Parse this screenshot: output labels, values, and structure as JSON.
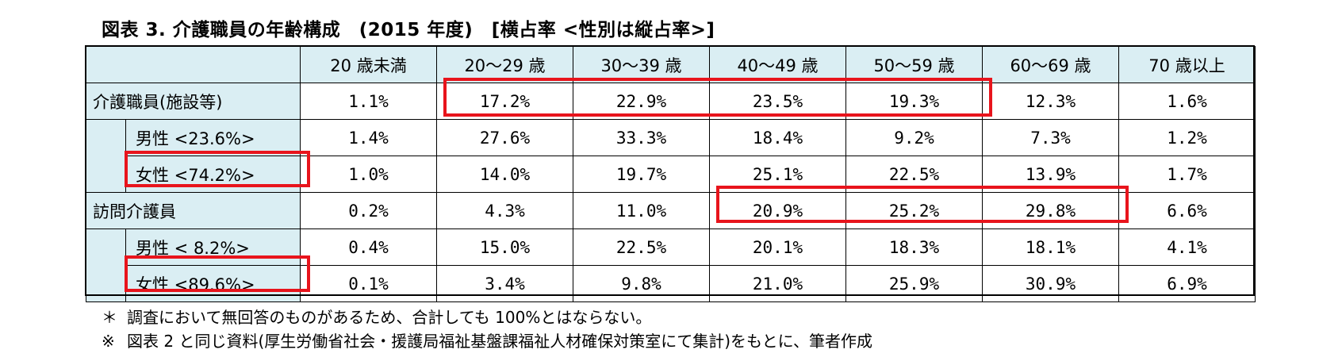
{
  "title": "図表 3.  介護職員の年齢構成　(2015 年度)　[横占率 <性別は縦占率>]",
  "columns": [
    "20 歳未満",
    "20〜29 歳",
    "30〜39 歳",
    "40〜49 歳",
    "50〜59 歳",
    "60〜69 歳",
    "70 歳以上"
  ],
  "rows": [
    {
      "label": "介護職員(施設等)",
      "values": [
        "1.1%",
        "17.2%",
        "22.9%",
        "23.5%",
        "19.3%",
        "12.3%",
        "1.6%"
      ]
    },
    {
      "label": "男性 <23.6%>",
      "values": [
        "1.4%",
        "27.6%",
        "33.3%",
        "18.4%",
        "9.2%",
        "7.3%",
        "1.2%"
      ]
    },
    {
      "label": "女性 <74.2%>",
      "values": [
        "1.0%",
        "14.0%",
        "19.7%",
        "25.1%",
        "22.5%",
        "13.9%",
        "1.7%"
      ]
    },
    {
      "label": "訪問介護員",
      "values": [
        "0.2%",
        "4.3%",
        "11.0%",
        "20.9%",
        "25.2%",
        "29.8%",
        "6.6%"
      ]
    },
    {
      "label": "男性 < 8.2%>",
      "values": [
        "0.4%",
        "15.0%",
        "22.5%",
        "20.1%",
        "18.3%",
        "18.1%",
        "4.1%"
      ]
    },
    {
      "label": "女性 <89.6%>",
      "values": [
        "0.1%",
        "3.4%",
        "9.8%",
        "21.0%",
        "25.9%",
        "30.9%",
        "6.9%"
      ]
    }
  ],
  "notes": [
    {
      "mark": "＊",
      "text": "調査において無回答のものがあるため、合計しても 100%とはならない。"
    },
    {
      "mark": "※",
      "text": "図表 2 と同じ資料(厚生労働省社会・援護局福祉基盤課福祉人材確保対策室にて集計)をもとに、筆者作成"
    }
  ],
  "colors": {
    "header_bg": "#daeef3",
    "highlight": "#e8141c"
  }
}
